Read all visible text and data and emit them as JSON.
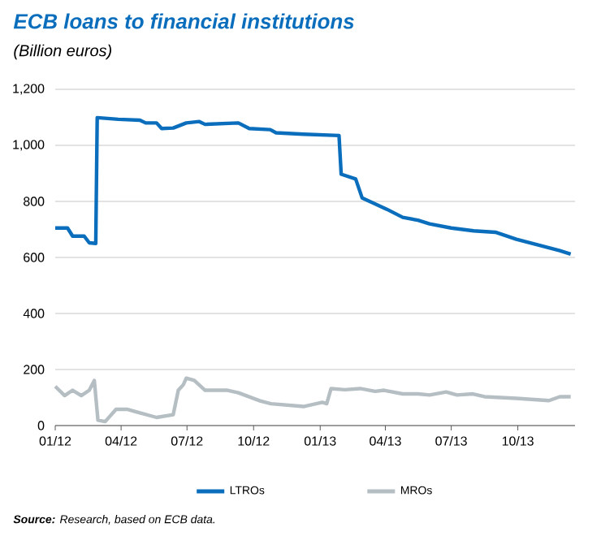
{
  "chart_data": {
    "type": "line",
    "title": "ECB loans to financial institutions",
    "subtitle": "(Billion euros)",
    "annotations": [
      "**Source:** Research, based on ECB data."
    ],
    "xlim": [
      "2012-01-01",
      "2013-12-19"
    ],
    "xticks": [
      {
        "value": "2012-01",
        "label": "01/12"
      },
      {
        "value": "2012-04",
        "label": "04/12"
      },
      {
        "value": "2012-07",
        "label": "07/12"
      },
      {
        "value": "2012-10",
        "label": "10/12"
      },
      {
        "value": "2013-01",
        "label": "01/13"
      },
      {
        "value": "2013-04",
        "label": "04/13"
      },
      {
        "value": "2013-07",
        "label": "07/13"
      },
      {
        "value": "2013-10",
        "label": "10/13"
      }
    ],
    "ylim": [
      0,
      1200
    ],
    "yticks": [
      0,
      200,
      400,
      600,
      800,
      {
        "value": 1000,
        "label": "1,000"
      },
      {
        "value": 1200,
        "label": "1,200"
      }
    ],
    "grid": "y",
    "legend": "bottom",
    "line_style": "solid",
    "series": [
      {
        "name": "LTROs",
        "color": "#0a6ebd",
        "x": [
          "2012-01-01",
          "2012-01-18",
          "2012-01-25",
          "2012-02-10",
          "2012-02-17",
          "2012-02-26",
          "2012-02-28",
          "2012-03-28",
          "2012-04-27",
          "2012-05-05",
          "2012-05-20",
          "2012-05-27",
          "2012-06-12",
          "2012-06-30",
          "2012-07-18",
          "2012-07-26",
          "2012-09-10",
          "2012-09-25",
          "2012-10-24",
          "2012-11-01",
          "2012-12-09",
          "2013-01-27",
          "2013-01-30",
          "2013-02-19",
          "2013-02-28",
          "2013-04-03",
          "2013-04-25",
          "2013-05-16",
          "2013-06-01",
          "2013-07-01",
          "2013-08-01",
          "2013-08-31",
          "2013-09-29",
          "2013-10-28",
          "2013-11-28",
          "2013-12-13"
        ],
        "values": [
          705,
          705,
          676,
          676,
          652,
          650,
          1099,
          1093,
          1090,
          1080,
          1080,
          1060,
          1062,
          1080,
          1085,
          1075,
          1080,
          1060,
          1056,
          1045,
          1040,
          1035,
          897,
          880,
          812,
          772,
          743,
          733,
          720,
          705,
          695,
          690,
          665,
          645,
          624,
          612
        ]
      },
      {
        "name": "MROs",
        "color": "#b4bec3",
        "x": [
          "2012-01-01",
          "2012-01-14",
          "2012-01-25",
          "2012-02-06",
          "2012-02-17",
          "2012-02-24",
          "2012-02-29",
          "2012-03-10",
          "2012-03-25",
          "2012-04-09",
          "2012-04-27",
          "2012-05-20",
          "2012-06-12",
          "2012-06-19",
          "2012-06-26",
          "2012-06-30",
          "2012-07-11",
          "2012-07-26",
          "2012-08-26",
          "2012-09-10",
          "2012-10-10",
          "2012-10-25",
          "2012-12-09",
          "2012-12-20",
          "2013-01-04",
          "2013-01-10",
          "2013-01-16",
          "2013-02-04",
          "2013-02-25",
          "2013-03-18",
          "2013-03-30",
          "2013-04-25",
          "2013-05-16",
          "2013-06-01",
          "2013-06-24",
          "2013-07-09",
          "2013-07-31",
          "2013-08-16",
          "2013-09-29",
          "2013-11-13",
          "2013-11-28",
          "2013-12-13"
        ],
        "values": [
          140,
          107,
          126,
          107,
          126,
          161,
          19,
          14,
          58,
          58,
          45,
          29,
          39,
          126,
          146,
          169,
          161,
          126,
          126,
          117,
          88,
          78,
          68,
          74,
          83,
          78,
          132,
          128,
          132,
          122,
          126,
          113,
          113,
          109,
          120,
          109,
          113,
          103,
          97,
          89,
          103,
          103
        ]
      }
    ]
  }
}
